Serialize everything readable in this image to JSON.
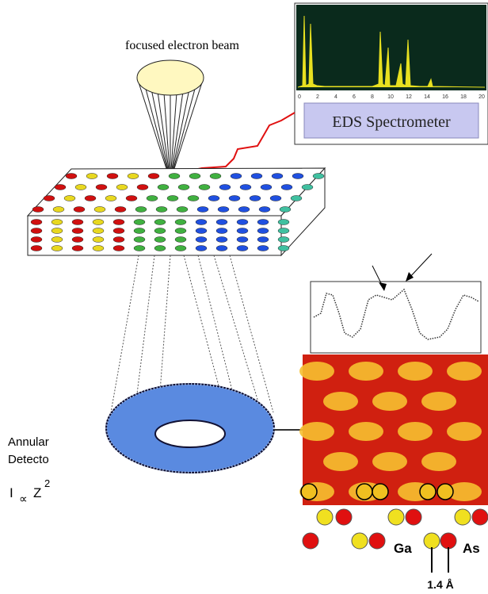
{
  "beam_label": "focused electron beam",
  "spectrometer": {
    "label": "EDS Spectrometer",
    "axis_ticks": [
      "0",
      "2",
      "4",
      "6",
      "8",
      "10",
      "12",
      "14",
      "16",
      "18",
      "20"
    ]
  },
  "detector": {
    "lines": [
      "Annular",
      "Detecto"
    ]
  },
  "formula": {
    "intensity": "I",
    "relation": "∝",
    "variable": "Z",
    "exponent": "2"
  },
  "atoms": {
    "ga": "Ga",
    "as": "As",
    "spacing": "1.4 Å"
  }
}
